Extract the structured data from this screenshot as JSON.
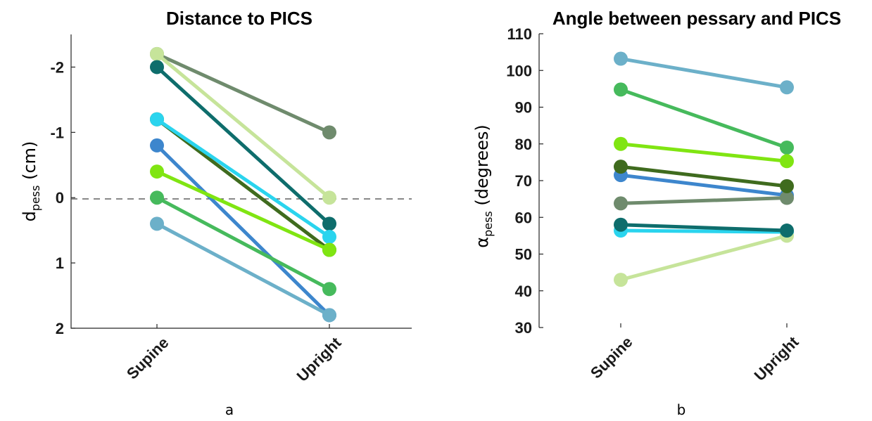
{
  "chart_data": [
    {
      "type": "line",
      "panel_label": "a",
      "title": "Distance to PICS",
      "ylabel_main": "d",
      "ylabel_sub": "pess",
      "ylabel_unit": " (cm)",
      "categories": [
        "Supine",
        "Upright"
      ],
      "y_reversed": true,
      "ylim": [
        -2.5,
        2
      ],
      "yticks": [
        -2,
        -1,
        0,
        1,
        2
      ],
      "reference_line": 0,
      "series": [
        {
          "color": "#6f8b6d",
          "values": [
            -2.2,
            -1.0
          ]
        },
        {
          "color": "#c6e49a",
          "values": [
            -2.2,
            0.0
          ]
        },
        {
          "color": "#0e6d6c",
          "values": [
            -2.0,
            0.4
          ]
        },
        {
          "color": "#3f6b1e",
          "values": [
            -1.2,
            0.8
          ]
        },
        {
          "color": "#2ad4ee",
          "values": [
            -1.2,
            0.6
          ]
        },
        {
          "color": "#3d86cd",
          "values": [
            -0.8,
            1.8
          ]
        },
        {
          "color": "#80e512",
          "values": [
            -0.4,
            0.8
          ]
        },
        {
          "color": "#46ba5c",
          "values": [
            0.0,
            1.4
          ]
        },
        {
          "color": "#6cb0c9",
          "values": [
            0.4,
            1.8
          ]
        }
      ]
    },
    {
      "type": "line",
      "panel_label": "b",
      "title": "Angle between pessary and PICS",
      "ylabel_main": "α",
      "ylabel_sub": "pess",
      "ylabel_unit": " (degrees)",
      "categories": [
        "Supine",
        "Upright"
      ],
      "y_reversed": false,
      "ylim": [
        30,
        110
      ],
      "yticks": [
        30,
        40,
        50,
        60,
        70,
        80,
        90,
        100,
        110
      ],
      "series": [
        {
          "color": "#6cb0c9",
          "values": [
            103.2,
            95.4
          ]
        },
        {
          "color": "#46ba5c",
          "values": [
            94.8,
            79.0
          ]
        },
        {
          "color": "#80e512",
          "values": [
            80.0,
            75.3
          ]
        },
        {
          "color": "#3d86cd",
          "values": [
            71.5,
            66.0
          ]
        },
        {
          "color": "#6f8b6d",
          "values": [
            63.8,
            65.3
          ]
        },
        {
          "color": "#2ad4ee",
          "values": [
            56.4,
            56.0
          ]
        },
        {
          "color": "#c6e49a",
          "values": [
            43.0,
            55.0
          ]
        },
        {
          "color": "#0e6d6c",
          "values": [
            58.0,
            56.4
          ]
        },
        {
          "color": "#3f6b1e",
          "values": [
            73.8,
            68.5
          ]
        }
      ]
    }
  ]
}
